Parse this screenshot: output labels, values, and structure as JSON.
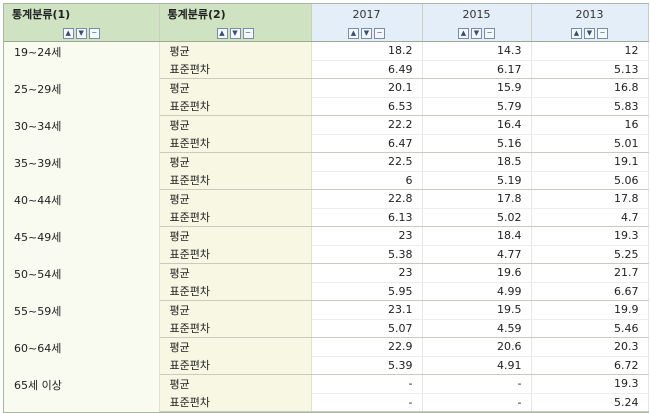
{
  "header": {
    "dim1": "통계분류(1)",
    "dim2": "통계분류(2)",
    "years": [
      "2017",
      "2015",
      "2013"
    ]
  },
  "controls": {
    "up": "▲",
    "down": "▼",
    "menu": "─"
  },
  "groups": [
    {
      "label": "19~24세",
      "rows": [
        {
          "stat": "평균",
          "values": [
            "18.2",
            "14.3",
            "12"
          ]
        },
        {
          "stat": "표준편차",
          "values": [
            "6.49",
            "6.17",
            "5.13"
          ]
        }
      ]
    },
    {
      "label": "25~29세",
      "rows": [
        {
          "stat": "평균",
          "values": [
            "20.1",
            "15.9",
            "16.8"
          ]
        },
        {
          "stat": "표준편차",
          "values": [
            "6.53",
            "5.79",
            "5.83"
          ]
        }
      ]
    },
    {
      "label": "30~34세",
      "rows": [
        {
          "stat": "평균",
          "values": [
            "22.2",
            "16.4",
            "16"
          ]
        },
        {
          "stat": "표준편차",
          "values": [
            "6.47",
            "5.16",
            "5.01"
          ]
        }
      ]
    },
    {
      "label": "35~39세",
      "rows": [
        {
          "stat": "평균",
          "values": [
            "22.5",
            "18.5",
            "19.1"
          ]
        },
        {
          "stat": "표준편차",
          "values": [
            "6",
            "5.19",
            "5.06"
          ]
        }
      ]
    },
    {
      "label": "40~44세",
      "rows": [
        {
          "stat": "평균",
          "values": [
            "22.8",
            "17.8",
            "17.8"
          ]
        },
        {
          "stat": "표준편차",
          "values": [
            "6.13",
            "5.02",
            "4.7"
          ]
        }
      ]
    },
    {
      "label": "45~49세",
      "rows": [
        {
          "stat": "평균",
          "values": [
            "23",
            "18.4",
            "19.3"
          ]
        },
        {
          "stat": "표준편차",
          "values": [
            "5.38",
            "4.77",
            "5.25"
          ]
        }
      ]
    },
    {
      "label": "50~54세",
      "rows": [
        {
          "stat": "평균",
          "values": [
            "23",
            "19.6",
            "21.7"
          ]
        },
        {
          "stat": "표준편차",
          "values": [
            "5.95",
            "4.99",
            "6.67"
          ]
        }
      ]
    },
    {
      "label": "55~59세",
      "rows": [
        {
          "stat": "평균",
          "values": [
            "23.1",
            "19.5",
            "19.9"
          ]
        },
        {
          "stat": "표준편차",
          "values": [
            "5.07",
            "4.59",
            "5.46"
          ]
        }
      ]
    },
    {
      "label": "60~64세",
      "rows": [
        {
          "stat": "평균",
          "values": [
            "22.9",
            "20.6",
            "20.3"
          ]
        },
        {
          "stat": "표준편차",
          "values": [
            "5.39",
            "4.91",
            "6.72"
          ]
        }
      ]
    },
    {
      "label": "65세 이상",
      "rows": [
        {
          "stat": "평균",
          "values": [
            "-",
            "-",
            "19.3"
          ]
        },
        {
          "stat": "표준편차",
          "values": [
            "-",
            "-",
            "5.24"
          ]
        }
      ]
    }
  ]
}
